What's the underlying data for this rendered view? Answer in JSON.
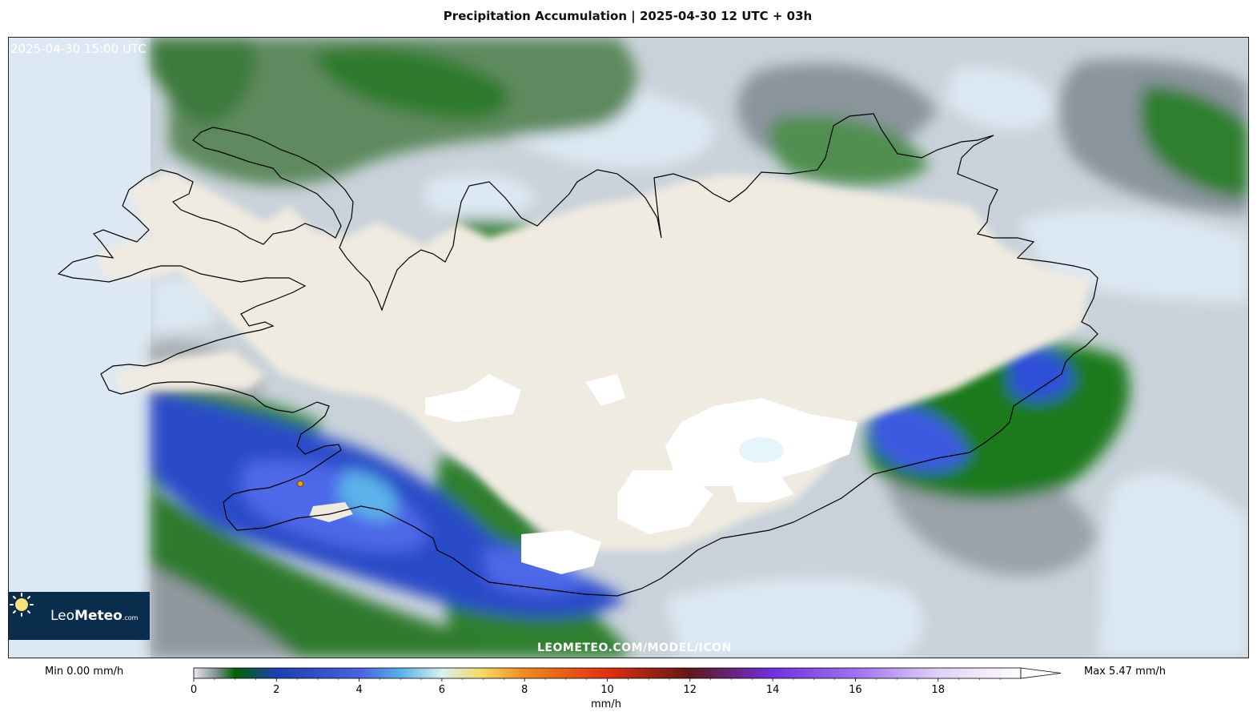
{
  "title": "Precipitation Accumulation | 2025-04-30 12 UTC + 03h",
  "map": {
    "timestamp": "2025-04-30 15:00 UTC",
    "watermark": "LEOMETEO.COM/MODEL/ICON",
    "region": "Iceland",
    "colors": {
      "sea": "#dce8f3",
      "land": "#f0ebe0",
      "snow": "#ffffff",
      "coast": "#000000"
    }
  },
  "logo": {
    "brand_light": "Leo",
    "brand_bold": "Meteo",
    "domain": ".com",
    "icon": "sun-icon"
  },
  "legend": {
    "min_label": "Min 0.00 mm/h",
    "max_label": "Max 5.47 mm/h",
    "unit": "mm/h",
    "range": [
      0,
      20
    ],
    "ticks": [
      "0",
      "2",
      "4",
      "6",
      "8",
      "10",
      "12",
      "14",
      "16",
      "18"
    ],
    "stops": [
      {
        "value": 0,
        "color": "#e8e8e8"
      },
      {
        "value": 0.5,
        "color": "#8a96a0"
      },
      {
        "value": 1,
        "color": "#006400"
      },
      {
        "value": 2,
        "color": "#1c3fb0"
      },
      {
        "value": 4,
        "color": "#4a60e0"
      },
      {
        "value": 5,
        "color": "#5ab0e8"
      },
      {
        "value": 6,
        "color": "#d8f0f0"
      },
      {
        "value": 7,
        "color": "#f5d860"
      },
      {
        "value": 8,
        "color": "#f08a20"
      },
      {
        "value": 10,
        "color": "#e03010"
      },
      {
        "value": 12,
        "color": "#601818"
      },
      {
        "value": 14,
        "color": "#7030e0"
      },
      {
        "value": 16,
        "color": "#a070f0"
      },
      {
        "value": 18,
        "color": "#e0d0f8"
      },
      {
        "value": 20,
        "color": "#ffffff"
      }
    ]
  }
}
